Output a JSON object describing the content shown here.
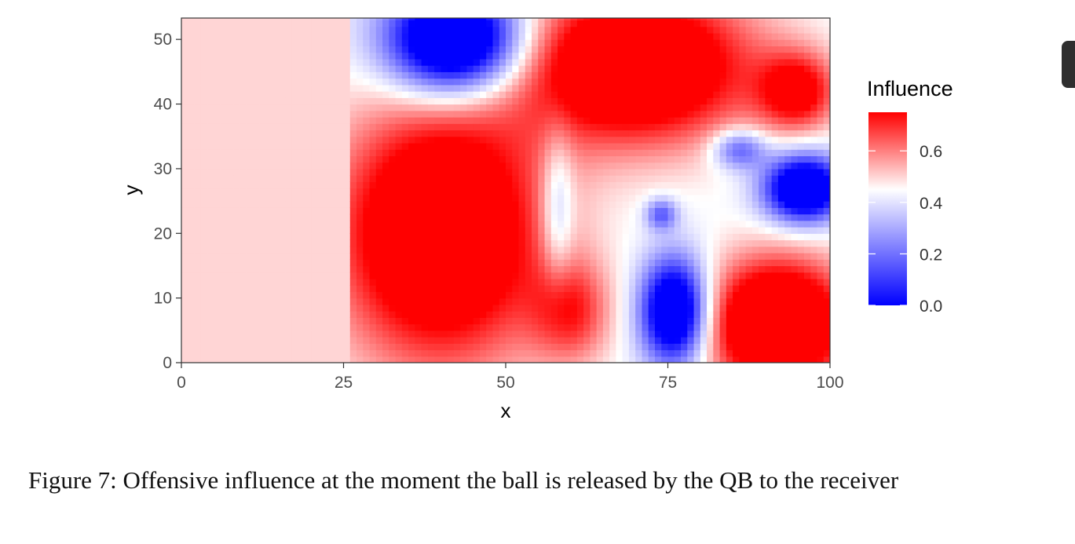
{
  "chart_data": {
    "type": "heatmap",
    "title": "",
    "xlabel": "x",
    "ylabel": "y",
    "xlim": [
      0,
      100
    ],
    "ylim": [
      0,
      53.3
    ],
    "x_ticks": [
      0,
      25,
      50,
      75,
      100
    ],
    "y_ticks": [
      0,
      10,
      20,
      30,
      40,
      50
    ],
    "legend": {
      "title": "Influence",
      "placement": "right",
      "range": [
        0,
        0.75
      ],
      "ticks": [
        0.0,
        0.2,
        0.4,
        0.6
      ],
      "tick_labels": [
        "0.0",
        "0.2",
        "0.4",
        "0.6"
      ],
      "colors": {
        "low": "#0000ff",
        "mid": "#ffffff",
        "high": "#ff0000"
      },
      "midpoint": 0.45
    },
    "background_value": 0.5,
    "grid": false,
    "field_summary": [
      {
        "region": "x 0-27, all y",
        "influence": 0.5
      },
      {
        "region": "centered x 45, y 20",
        "influence": 0.75
      },
      {
        "region": "x 30-55, y 42-53",
        "influence": 0.0
      },
      {
        "region": "x 60-100, y 35-53",
        "influence": 0.75
      },
      {
        "region": "x 72-80, y 2-16",
        "influence": 0.0
      },
      {
        "region": "x 92-100, y 22-31",
        "influence": 0.0
      },
      {
        "region": "x 82-100, y 0-15",
        "influence": 0.75
      },
      {
        "region": "x 74, y 23",
        "influence": 0.45
      }
    ]
  },
  "caption": "Figure 7: Offensive influence at the moment the ball is released by the QB to the receiver"
}
